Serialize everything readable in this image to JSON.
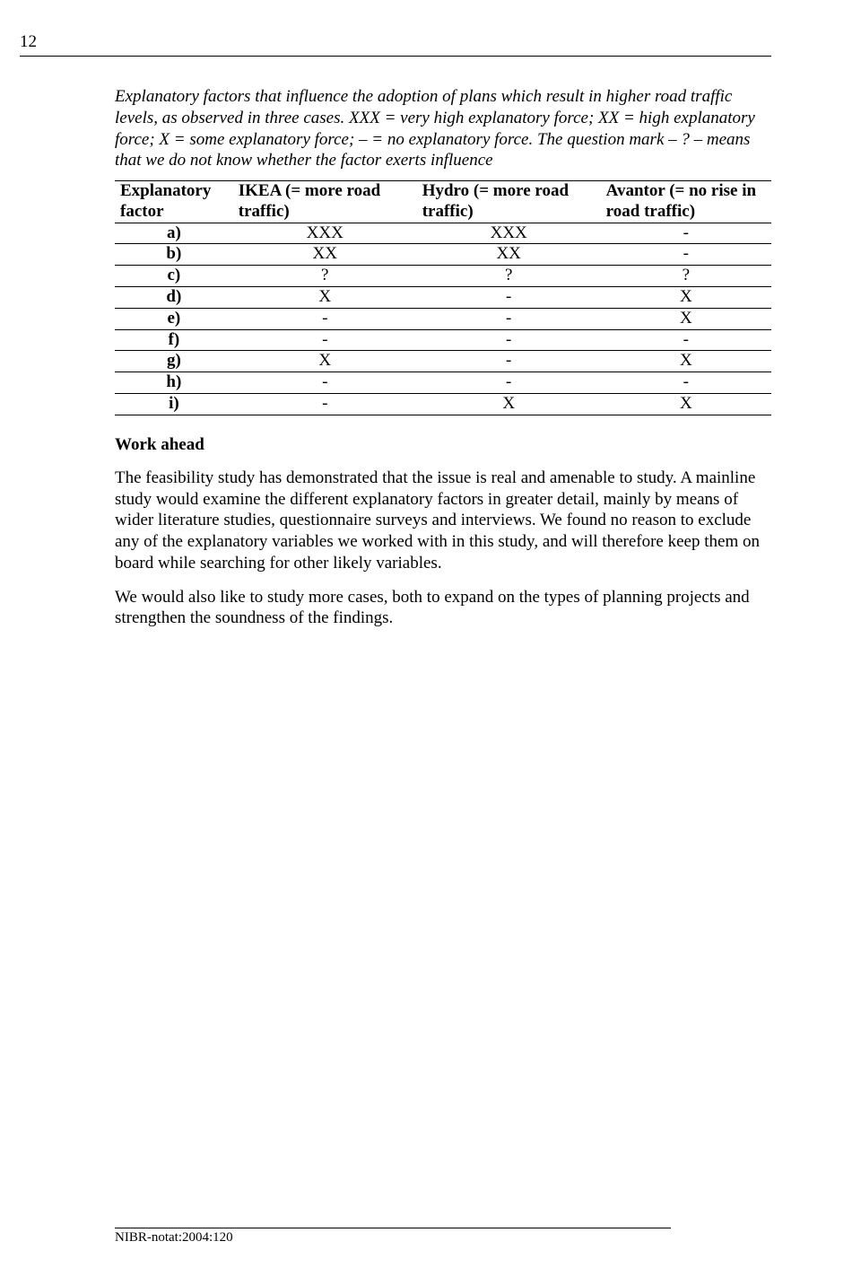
{
  "page_number": "12",
  "caption": "Explanatory factors that influence the adoption of plans which result in higher road traffic levels, as observed in three cases. XXX = very high explanatory force; XX = high explanatory force; X = some explanatory force; – = no explanatory force. The question mark – ? – means that we do not know whether the factor exerts influence",
  "table": {
    "headers": {
      "factor": "Explanatory factor",
      "ikea": "IKEA (= more road traffic)",
      "hydro": "Hydro (= more road traffic)",
      "avantor": "Avantor (= no rise in road traffic)"
    },
    "rows": [
      {
        "factor": "a)",
        "ikea": "XXX",
        "hydro": "XXX",
        "avantor": "-"
      },
      {
        "factor": "b)",
        "ikea": "XX",
        "hydro": "XX",
        "avantor": "-"
      },
      {
        "factor": "c)",
        "ikea": "?",
        "hydro": "?",
        "avantor": "?"
      },
      {
        "factor": "d)",
        "ikea": "X",
        "hydro": "-",
        "avantor": "X"
      },
      {
        "factor": "e)",
        "ikea": "-",
        "hydro": "-",
        "avantor": "X"
      },
      {
        "factor": "f)",
        "ikea": "-",
        "hydro": "-",
        "avantor": "-"
      },
      {
        "factor": "g)",
        "ikea": "X",
        "hydro": "-",
        "avantor": "X"
      },
      {
        "factor": "h)",
        "ikea": "-",
        "hydro": "-",
        "avantor": "-"
      },
      {
        "factor": "i)",
        "ikea": "-",
        "hydro": "X",
        "avantor": "X"
      }
    ]
  },
  "section_heading": "Work ahead",
  "para1": "The feasibility study has demonstrated that the issue is real and amenable to study. A mainline study would examine the different explanatory factors in greater detail, mainly by means of wider literature studies, questionnaire surveys and interviews. We found no reason to exclude any of the explanatory variables we worked with in this study, and will therefore keep them on board while searching for other likely variables.",
  "para2": "We would also like to study more cases, both to expand on the types of planning projects and strengthen the soundness of the findings.",
  "footer": "NIBR-notat:2004:120"
}
